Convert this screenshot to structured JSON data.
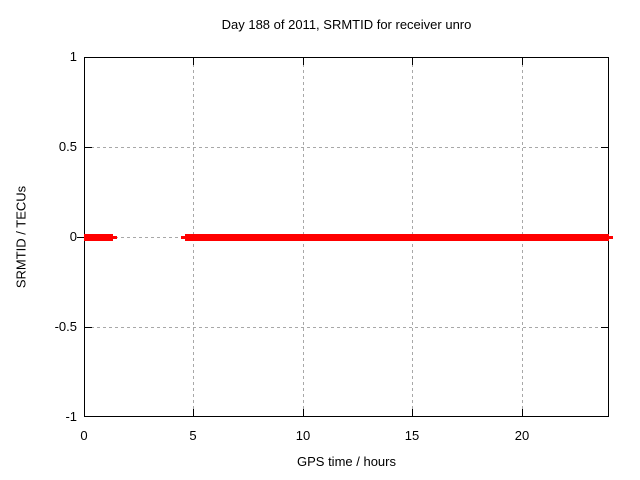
{
  "chart_data": {
    "type": "line",
    "title": "Day 188 of 2011, SRMTID for receiver unro",
    "xlabel": "GPS time / hours",
    "ylabel": "SRMTID / TECUs",
    "xlim": [
      0,
      24
    ],
    "ylim": [
      -1,
      1
    ],
    "x_ticks": [
      {
        "value": 0,
        "label": "0"
      },
      {
        "value": 5,
        "label": "5"
      },
      {
        "value": 10,
        "label": "10"
      },
      {
        "value": 15,
        "label": "15"
      },
      {
        "value": 20,
        "label": "20"
      }
    ],
    "y_ticks": [
      {
        "value": 1,
        "label": "1"
      },
      {
        "value": 0.5,
        "label": "0.5"
      },
      {
        "value": 0,
        "label": "0"
      },
      {
        "value": -0.5,
        "label": "-0.5"
      },
      {
        "value": -1,
        "label": "-1"
      }
    ],
    "grid": true,
    "legend": "none",
    "series": [
      {
        "name": "SRMTID",
        "y_value": 0,
        "segments": [
          {
            "x_start": 0,
            "x_end": 1.33,
            "cap_start": false,
            "cap_end": true
          },
          {
            "x_start": 4.6,
            "x_end": 24,
            "cap_start": true,
            "cap_end": true
          }
        ]
      }
    ]
  },
  "colors": {
    "background": "#ffffff",
    "border": "#000000",
    "grid": "#a8a8a8",
    "series": "#ff0000",
    "text": "#000000"
  }
}
